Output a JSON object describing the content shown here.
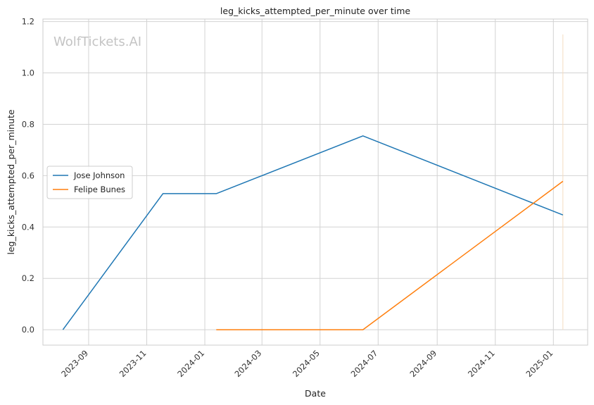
{
  "chart_data": {
    "type": "line",
    "title": "leg_kicks_attempted_per_minute over time",
    "xlabel": "Date",
    "ylabel": "leg_kicks_attempted_per_minute",
    "watermark": "WolfTickets.AI",
    "grid": true,
    "legend_position": "center-left",
    "ylim": [
      -0.06,
      1.21
    ],
    "yticks": [
      0.0,
      0.2,
      0.4,
      0.6,
      0.8,
      1.0,
      1.2
    ],
    "xlim": [
      "2023-07-15",
      "2025-02-06"
    ],
    "xticks": [
      "2023-09-01",
      "2023-11-01",
      "2024-01-01",
      "2024-03-01",
      "2024-05-01",
      "2024-07-01",
      "2024-09-01",
      "2024-11-01",
      "2025-01-01"
    ],
    "xtick_labels": [
      "2023-09",
      "2023-11",
      "2024-01",
      "2024-03",
      "2024-05",
      "2024-07",
      "2024-09",
      "2024-11",
      "2025-01"
    ],
    "series": [
      {
        "name": "Jose Johnson",
        "color": "#1f77b4",
        "x": [
          "2023-08-05",
          "2023-11-18",
          "2024-01-13",
          "2024-06-15",
          "2025-01-11"
        ],
        "y": [
          0.0,
          0.53,
          0.53,
          0.755,
          0.447
        ]
      },
      {
        "name": "Felipe Bunes",
        "color": "#ff7f0e",
        "x": [
          "2024-01-13",
          "2024-06-15",
          "2025-01-11"
        ],
        "y": [
          0.0,
          0.0,
          0.578
        ]
      }
    ],
    "vertical_marker": {
      "x": "2025-01-11",
      "y_range": [
        0.0,
        1.15
      ],
      "color": "#f5dcc0"
    }
  }
}
